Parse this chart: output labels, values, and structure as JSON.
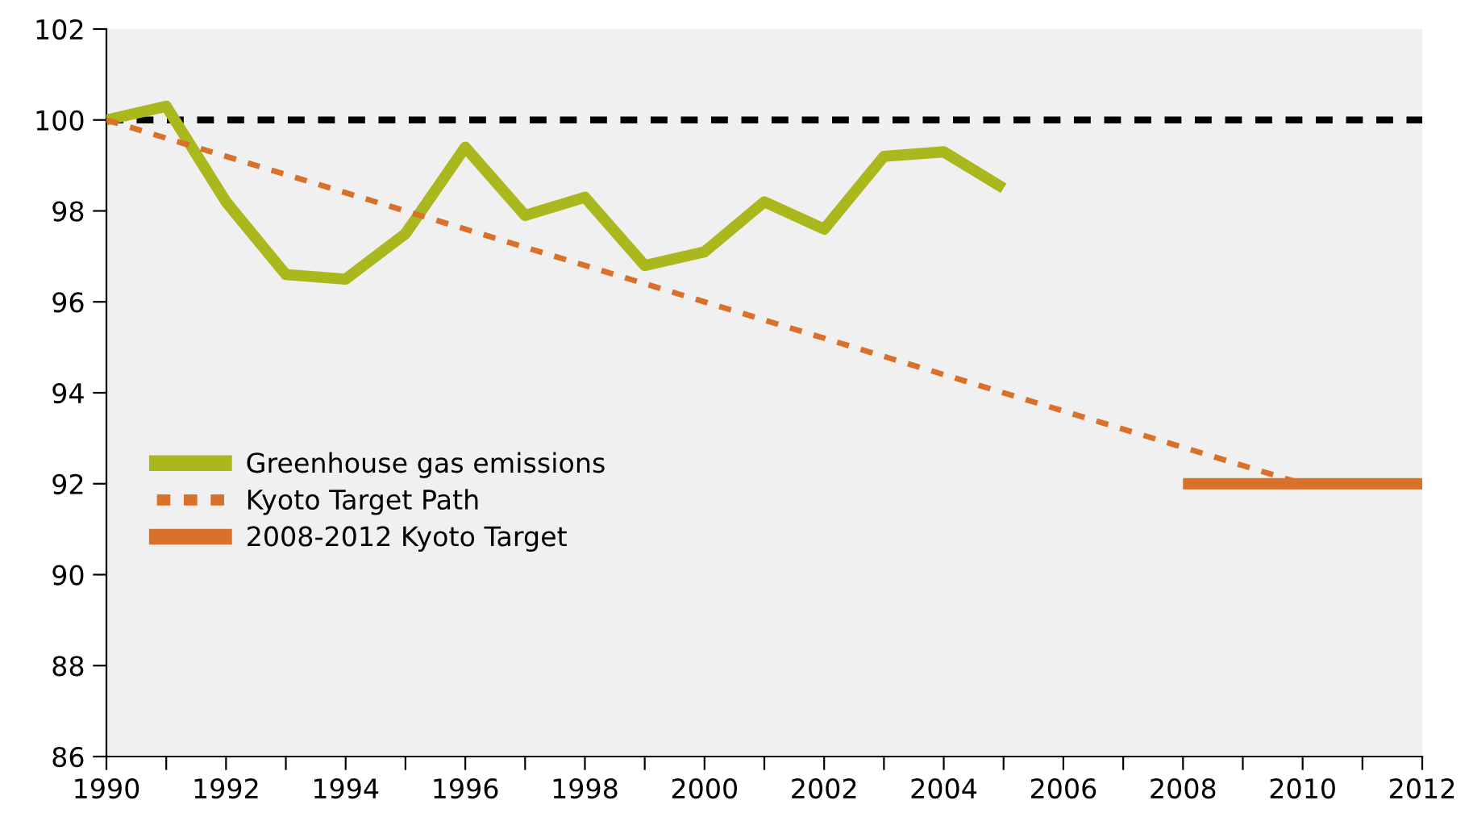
{
  "chart_data": {
    "type": "line",
    "series": [
      {
        "name": "Greenhouse gas emissions",
        "color": "#aab81e",
        "line_style": "solid",
        "x": [
          1990,
          1991,
          1992,
          1993,
          1994,
          1995,
          1996,
          1997,
          1998,
          1999,
          2000,
          2001,
          2002,
          2003,
          2004,
          2005
        ],
        "values": [
          100,
          100.3,
          98.2,
          96.6,
          96.5,
          97.5,
          99.4,
          97.9,
          98.3,
          96.8,
          97.1,
          98.2,
          97.6,
          99.2,
          99.3,
          98.5
        ]
      },
      {
        "name": "Kyoto Target Path",
        "color": "#d9712b",
        "line_style": "dashed",
        "x": [
          1990,
          2010
        ],
        "values": [
          100,
          92
        ]
      },
      {
        "name": "2008-2012 Kyoto Target",
        "color": "#d9712b",
        "line_style": "solid",
        "x": [
          2008,
          2012
        ],
        "values": [
          92,
          92
        ]
      }
    ],
    "ref_lines": [
      {
        "axis": "y",
        "value": 100,
        "color": "#000000",
        "line_style": "dashed"
      }
    ],
    "xlim": [
      1990,
      2012
    ],
    "xticks": [
      1990,
      {
        "value": 1991,
        "label": null
      },
      1992,
      {
        "value": 1993,
        "label": null
      },
      1994,
      {
        "value": 1995,
        "label": null
      },
      1996,
      {
        "value": 1997,
        "label": null
      },
      1998,
      {
        "value": 1999,
        "label": null
      },
      2000,
      {
        "value": 2001,
        "label": null
      },
      2002,
      {
        "value": 2003,
        "label": null
      },
      2004,
      {
        "value": 2005,
        "label": null
      },
      2006,
      {
        "value": 2007,
        "label": null
      },
      2008,
      {
        "value": 2009,
        "label": null
      },
      2010,
      {
        "value": 2011,
        "label": null
      },
      2012
    ],
    "ylim": [
      86,
      102
    ],
    "yticks": [
      86,
      88,
      90,
      92,
      94,
      96,
      98,
      100,
      102
    ],
    "grid": false,
    "legend": "center left",
    "marker": "none"
  }
}
